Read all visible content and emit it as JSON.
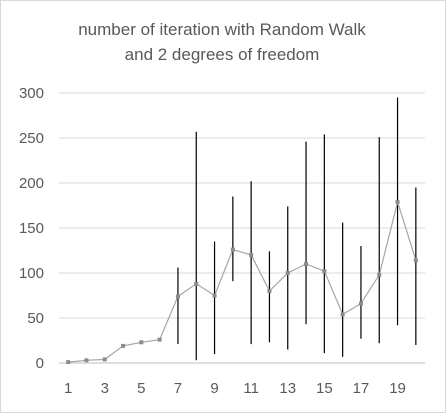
{
  "chart_data": {
    "type": "line",
    "title_lines": [
      "number of iteration with Random Walk",
      "and 2 degrees of freedom"
    ],
    "xlabel": "",
    "ylabel": "",
    "x": [
      1,
      2,
      3,
      4,
      5,
      6,
      7,
      8,
      9,
      10,
      11,
      12,
      13,
      14,
      15,
      16,
      17,
      18,
      19,
      20
    ],
    "x_tick_labels": [
      "1",
      "3",
      "5",
      "7",
      "9",
      "11",
      "13",
      "15",
      "17",
      "19"
    ],
    "y_tick_labels": [
      "0",
      "50",
      "100",
      "150",
      "200",
      "250",
      "300"
    ],
    "ylim": [
      0,
      300
    ],
    "grid": "horizontal",
    "legend": "none",
    "series": [
      {
        "values": [
          1,
          3,
          4,
          19,
          23,
          26,
          74,
          88,
          75,
          126,
          120,
          80,
          100,
          110,
          102,
          54,
          66,
          98,
          179,
          114
        ],
        "error_low": [
          1,
          3,
          4,
          19,
          23,
          26,
          21,
          3,
          10,
          91,
          21,
          23,
          15,
          43,
          11,
          7,
          27,
          22,
          42,
          20
        ],
        "error_high": [
          1,
          3,
          4,
          19,
          23,
          26,
          106,
          257,
          135,
          185,
          202,
          124,
          174,
          246,
          254,
          156,
          130,
          251,
          295,
          195
        ]
      }
    ],
    "colors": {
      "line": "#a5a5a5",
      "marker": "#8c8c8c",
      "error_bar": "#000000",
      "grid": "#d9d9d9",
      "text": "#595959"
    }
  }
}
